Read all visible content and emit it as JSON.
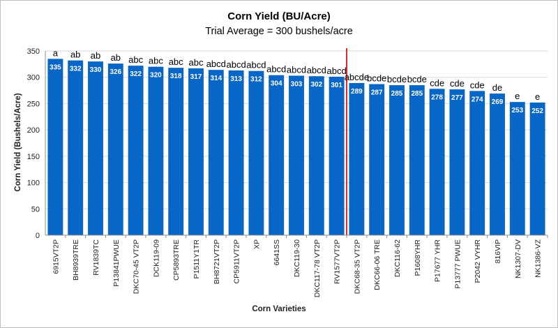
{
  "chart_data": {
    "type": "bar",
    "title": "Corn Yield (BU/Acre)",
    "subtitle": "Trial Average = 300 bushels/acre",
    "xlabel": "Corn Varieties",
    "ylabel": "Corn Yield (Bushels/Acre)",
    "ylim": [
      0,
      350
    ],
    "yticks": [
      0,
      50,
      100,
      150,
      200,
      250,
      300,
      350
    ],
    "grid": true,
    "categories": [
      "6915VT2P",
      "BH8939TRE",
      "RV1839TC",
      "P13841PWUE",
      "DKC70-45 VT2P",
      "DCK119-09",
      "CP5893TRE",
      "P1511Y1TR",
      "BH8721VT2P",
      "CP5911VT2P",
      "XP",
      "6641SS",
      "DKC119-30",
      "DKC117-78 VT2P",
      "RV1577VT2P",
      "DKC68-35 VT2P",
      "DKC66-06 TRE",
      "DKC116-62",
      "P1608YHR",
      "P17677 YHR",
      "P13777 PWUE",
      "P2042 VYHR",
      "816VIP",
      "NK1307-DV",
      "NK1386-VZ"
    ],
    "values": [
      335,
      332,
      330,
      326,
      322,
      320,
      318,
      317,
      314,
      313,
      312,
      304,
      303,
      302,
      301,
      289,
      287,
      285,
      285,
      278,
      277,
      274,
      269,
      253,
      252
    ],
    "significance_letters": [
      "a",
      "ab",
      "ab",
      "ab",
      "abc",
      "abc",
      "abc",
      "abc",
      "abcd",
      "abcd",
      "abcd",
      "abcd",
      "abcd",
      "abcd",
      "abcd",
      "abcde",
      "bcde",
      "bcde",
      "bcde",
      "cde",
      "cde",
      "cde",
      "de",
      "e",
      "e"
    ],
    "divider_after_category": "RV1577VT2P",
    "colors": {
      "bar": "#0866C6",
      "divider": "#E8262A",
      "grid": "#d9d9d9",
      "axis": "#8c8c8c"
    }
  }
}
